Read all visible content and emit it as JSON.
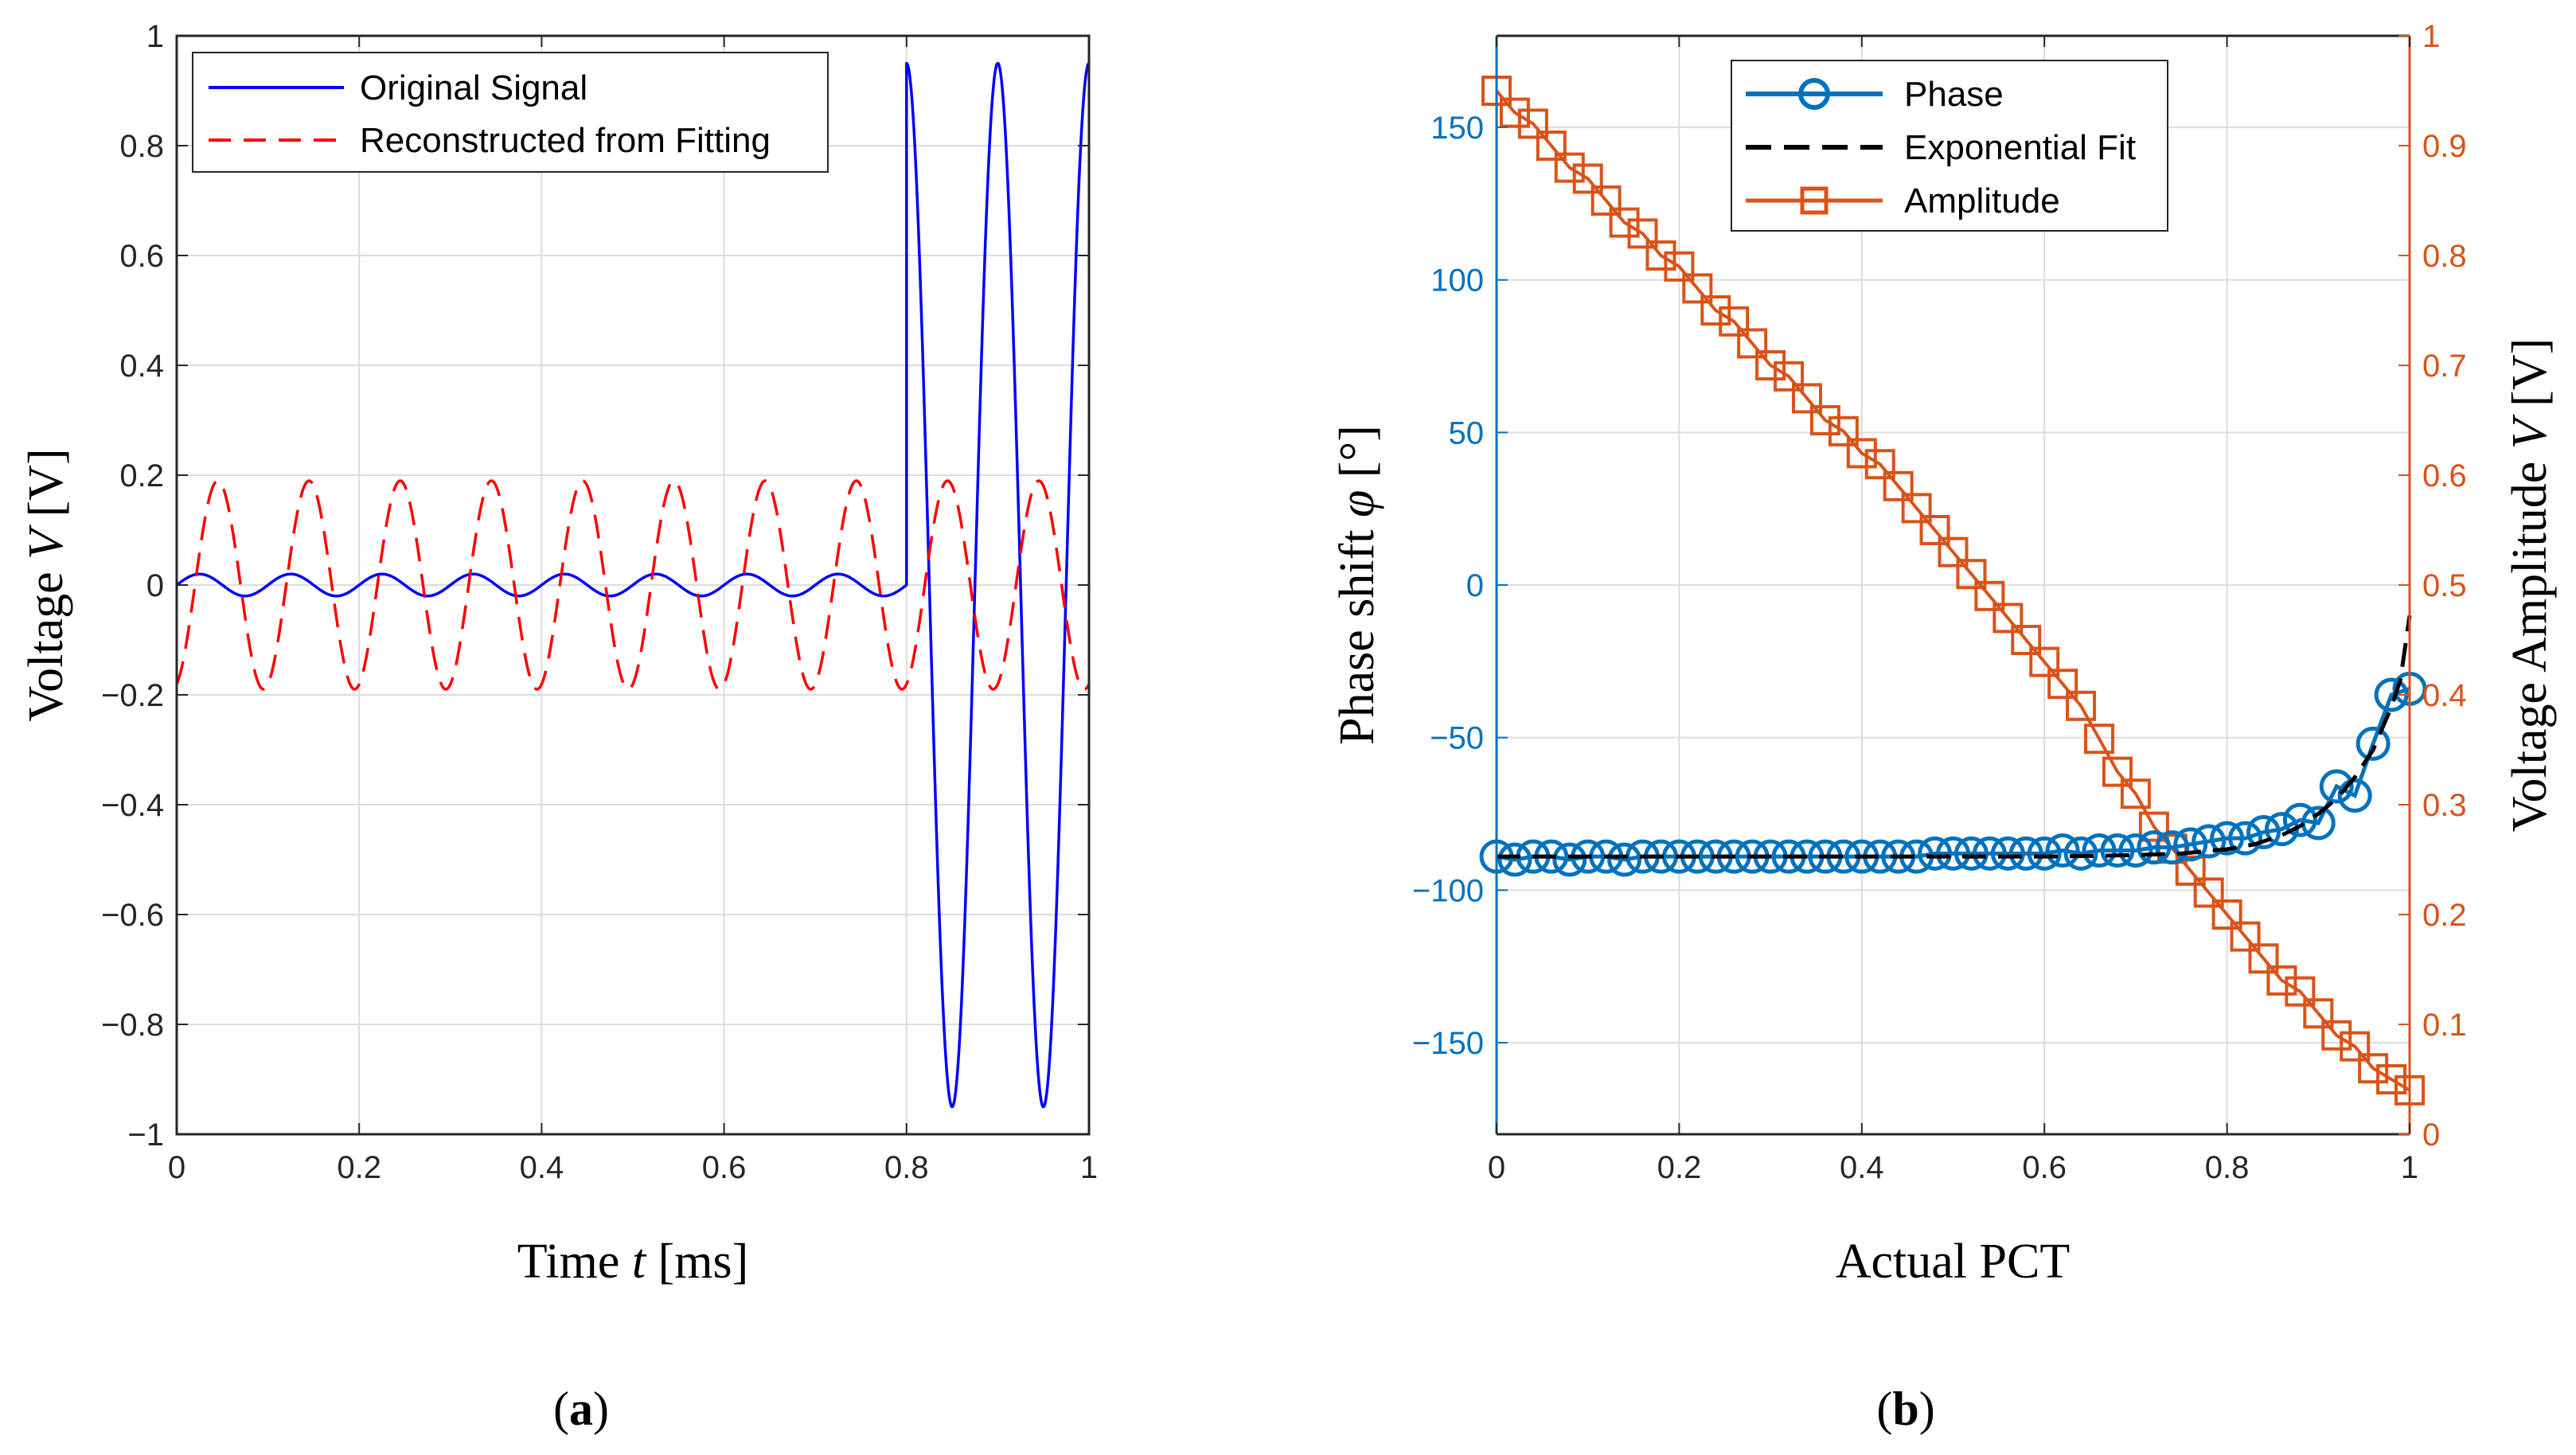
{
  "chart_data": [
    {
      "id": "a",
      "type": "line",
      "caption_open": "(",
      "caption_letter": "a",
      "caption_close": ")",
      "xlabel_pre": "Time ",
      "xlabel_var": "t",
      "xlabel_unit": " [ms]",
      "ylabel_pre": "Voltage ",
      "ylabel_var": "V",
      "ylabel_unit": " [V]",
      "xlim": [
        0,
        1
      ],
      "ylim": [
        -1,
        1
      ],
      "xticks": [
        0,
        0.2,
        0.4,
        0.6,
        0.8,
        1
      ],
      "xtick_labels": [
        "0",
        "0.2",
        "0.4",
        "0.6",
        "0.8",
        "1"
      ],
      "yticks": [
        -1,
        -0.8,
        -0.6,
        -0.4,
        -0.2,
        0,
        0.2,
        0.4,
        0.6,
        0.8,
        1
      ],
      "ytick_labels": [
        "−1",
        "−0.8",
        "−0.6",
        "−0.4",
        "−0.2",
        "0",
        "0.2",
        "0.4",
        "0.6",
        "0.8",
        "1"
      ],
      "grid": true,
      "legend_position": "top-left",
      "series": [
        {
          "name": "Original Signal",
          "color": "#0000ff",
          "style": "solid",
          "segments": [
            {
              "x_start": 0,
              "x_end": 0.8,
              "amplitude": 0.02,
              "frequency": 10,
              "phase_deg": 0
            },
            {
              "x_start": 0.8,
              "x_end": 1.0,
              "amplitude": 0.95,
              "frequency": 10,
              "phase_deg": 90
            }
          ]
        },
        {
          "name": "Reconstructed from Fitting",
          "color": "#ff0000",
          "style": "dashed",
          "segments": [
            {
              "x_start": 0,
              "x_end": 1.0,
              "amplitude": 0.19,
              "frequency": 10,
              "phase_deg": -72
            }
          ]
        }
      ]
    },
    {
      "id": "b",
      "type": "line",
      "caption_open": "(",
      "caption_letter": "b",
      "caption_close": ")",
      "xlabel": "Actual PCT",
      "ylabel_left_pre": "Phase shift ",
      "ylabel_left_var": "φ",
      "ylabel_left_unit": " [°]",
      "ylabel_right_pre": "Voltage Amplitude ",
      "ylabel_right_var": "V",
      "ylabel_right_unit": " [V]",
      "xlim": [
        0,
        1
      ],
      "ylim_left": [
        -180,
        180
      ],
      "ylim_right": [
        0,
        1
      ],
      "xticks": [
        0,
        0.2,
        0.4,
        0.6,
        0.8,
        1
      ],
      "xtick_labels": [
        "0",
        "0.2",
        "0.4",
        "0.6",
        "0.8",
        "1"
      ],
      "yticks_left": [
        -150,
        -100,
        -50,
        0,
        50,
        100,
        150
      ],
      "ytick_labels_left": [
        "−150",
        "−100",
        "−50",
        "0",
        "50",
        "100",
        "150"
      ],
      "yticks_right": [
        0,
        0.1,
        0.2,
        0.3,
        0.4,
        0.5,
        0.6,
        0.7,
        0.8,
        0.9,
        1
      ],
      "ytick_labels_right": [
        "0",
        "0.1",
        "0.2",
        "0.3",
        "0.4",
        "0.5",
        "0.6",
        "0.7",
        "0.8",
        "0.9",
        "1"
      ],
      "left_axis_color": "#0072bd",
      "right_axis_color": "#d95319",
      "grid": true,
      "legend_position": "top-center",
      "series": [
        {
          "name": "Phase",
          "color": "#0072bd",
          "marker": "circle",
          "axis": "left",
          "x": [
            0,
            0.02,
            0.04,
            0.06,
            0.08,
            0.1,
            0.12,
            0.14,
            0.16,
            0.18,
            0.2,
            0.22,
            0.24,
            0.26,
            0.28,
            0.3,
            0.32,
            0.34,
            0.36,
            0.38,
            0.4,
            0.42,
            0.44,
            0.46,
            0.48,
            0.5,
            0.52,
            0.54,
            0.56,
            0.58,
            0.6,
            0.62,
            0.64,
            0.66,
            0.68,
            0.7,
            0.72,
            0.74,
            0.76,
            0.78,
            0.8,
            0.82,
            0.84,
            0.86,
            0.88,
            0.9,
            0.92,
            0.94,
            0.96,
            0.98,
            1.0
          ],
          "y": [
            -89,
            -90,
            -89,
            -89,
            -90,
            -89,
            -89,
            -90,
            -89,
            -89,
            -89,
            -89,
            -89,
            -89,
            -89,
            -89,
            -89,
            -89,
            -89,
            -89,
            -89,
            -89,
            -89,
            -89,
            -88,
            -88,
            -88,
            -88,
            -88,
            -88,
            -88,
            -87,
            -88,
            -87,
            -87,
            -87,
            -86,
            -86,
            -85,
            -84,
            -83,
            -83,
            -81,
            -80,
            -77,
            -78,
            -66,
            -69,
            -52,
            -36,
            -34
          ]
        },
        {
          "name": "Exponential Fit",
          "color": "#000000",
          "style": "dashed",
          "axis": "left",
          "x": [
            0,
            0.1,
            0.2,
            0.3,
            0.4,
            0.5,
            0.6,
            0.65,
            0.7,
            0.75,
            0.8,
            0.83,
            0.86,
            0.88,
            0.9,
            0.92,
            0.94,
            0.96,
            0.98,
            0.99,
            1.0
          ],
          "y": [
            -89,
            -89,
            -89,
            -89,
            -89,
            -89,
            -89,
            -88.8,
            -88.5,
            -88,
            -86.6,
            -85,
            -82,
            -79,
            -75,
            -70,
            -63,
            -54,
            -40,
            -31,
            -10
          ]
        },
        {
          "name": "Amplitude",
          "color": "#d95319",
          "marker": "square",
          "axis": "right",
          "x": [
            0,
            0.02,
            0.04,
            0.06,
            0.08,
            0.1,
            0.12,
            0.14,
            0.16,
            0.18,
            0.2,
            0.22,
            0.24,
            0.26,
            0.28,
            0.3,
            0.32,
            0.34,
            0.36,
            0.38,
            0.4,
            0.42,
            0.44,
            0.46,
            0.48,
            0.5,
            0.52,
            0.54,
            0.56,
            0.58,
            0.6,
            0.62,
            0.64,
            0.66,
            0.68,
            0.7,
            0.72,
            0.74,
            0.76,
            0.78,
            0.8,
            0.82,
            0.84,
            0.86,
            0.88,
            0.9,
            0.92,
            0.94,
            0.96,
            0.98,
            1.0
          ],
          "y": [
            0.95,
            0.93,
            0.92,
            0.9,
            0.88,
            0.87,
            0.85,
            0.83,
            0.82,
            0.8,
            0.79,
            0.77,
            0.75,
            0.74,
            0.72,
            0.7,
            0.69,
            0.67,
            0.65,
            0.64,
            0.62,
            0.61,
            0.59,
            0.57,
            0.55,
            0.53,
            0.51,
            0.49,
            0.47,
            0.45,
            0.43,
            0.41,
            0.39,
            0.36,
            0.33,
            0.31,
            0.28,
            0.26,
            0.24,
            0.22,
            0.2,
            0.18,
            0.16,
            0.14,
            0.13,
            0.11,
            0.09,
            0.08,
            0.06,
            0.05,
            0.04
          ]
        }
      ]
    }
  ]
}
